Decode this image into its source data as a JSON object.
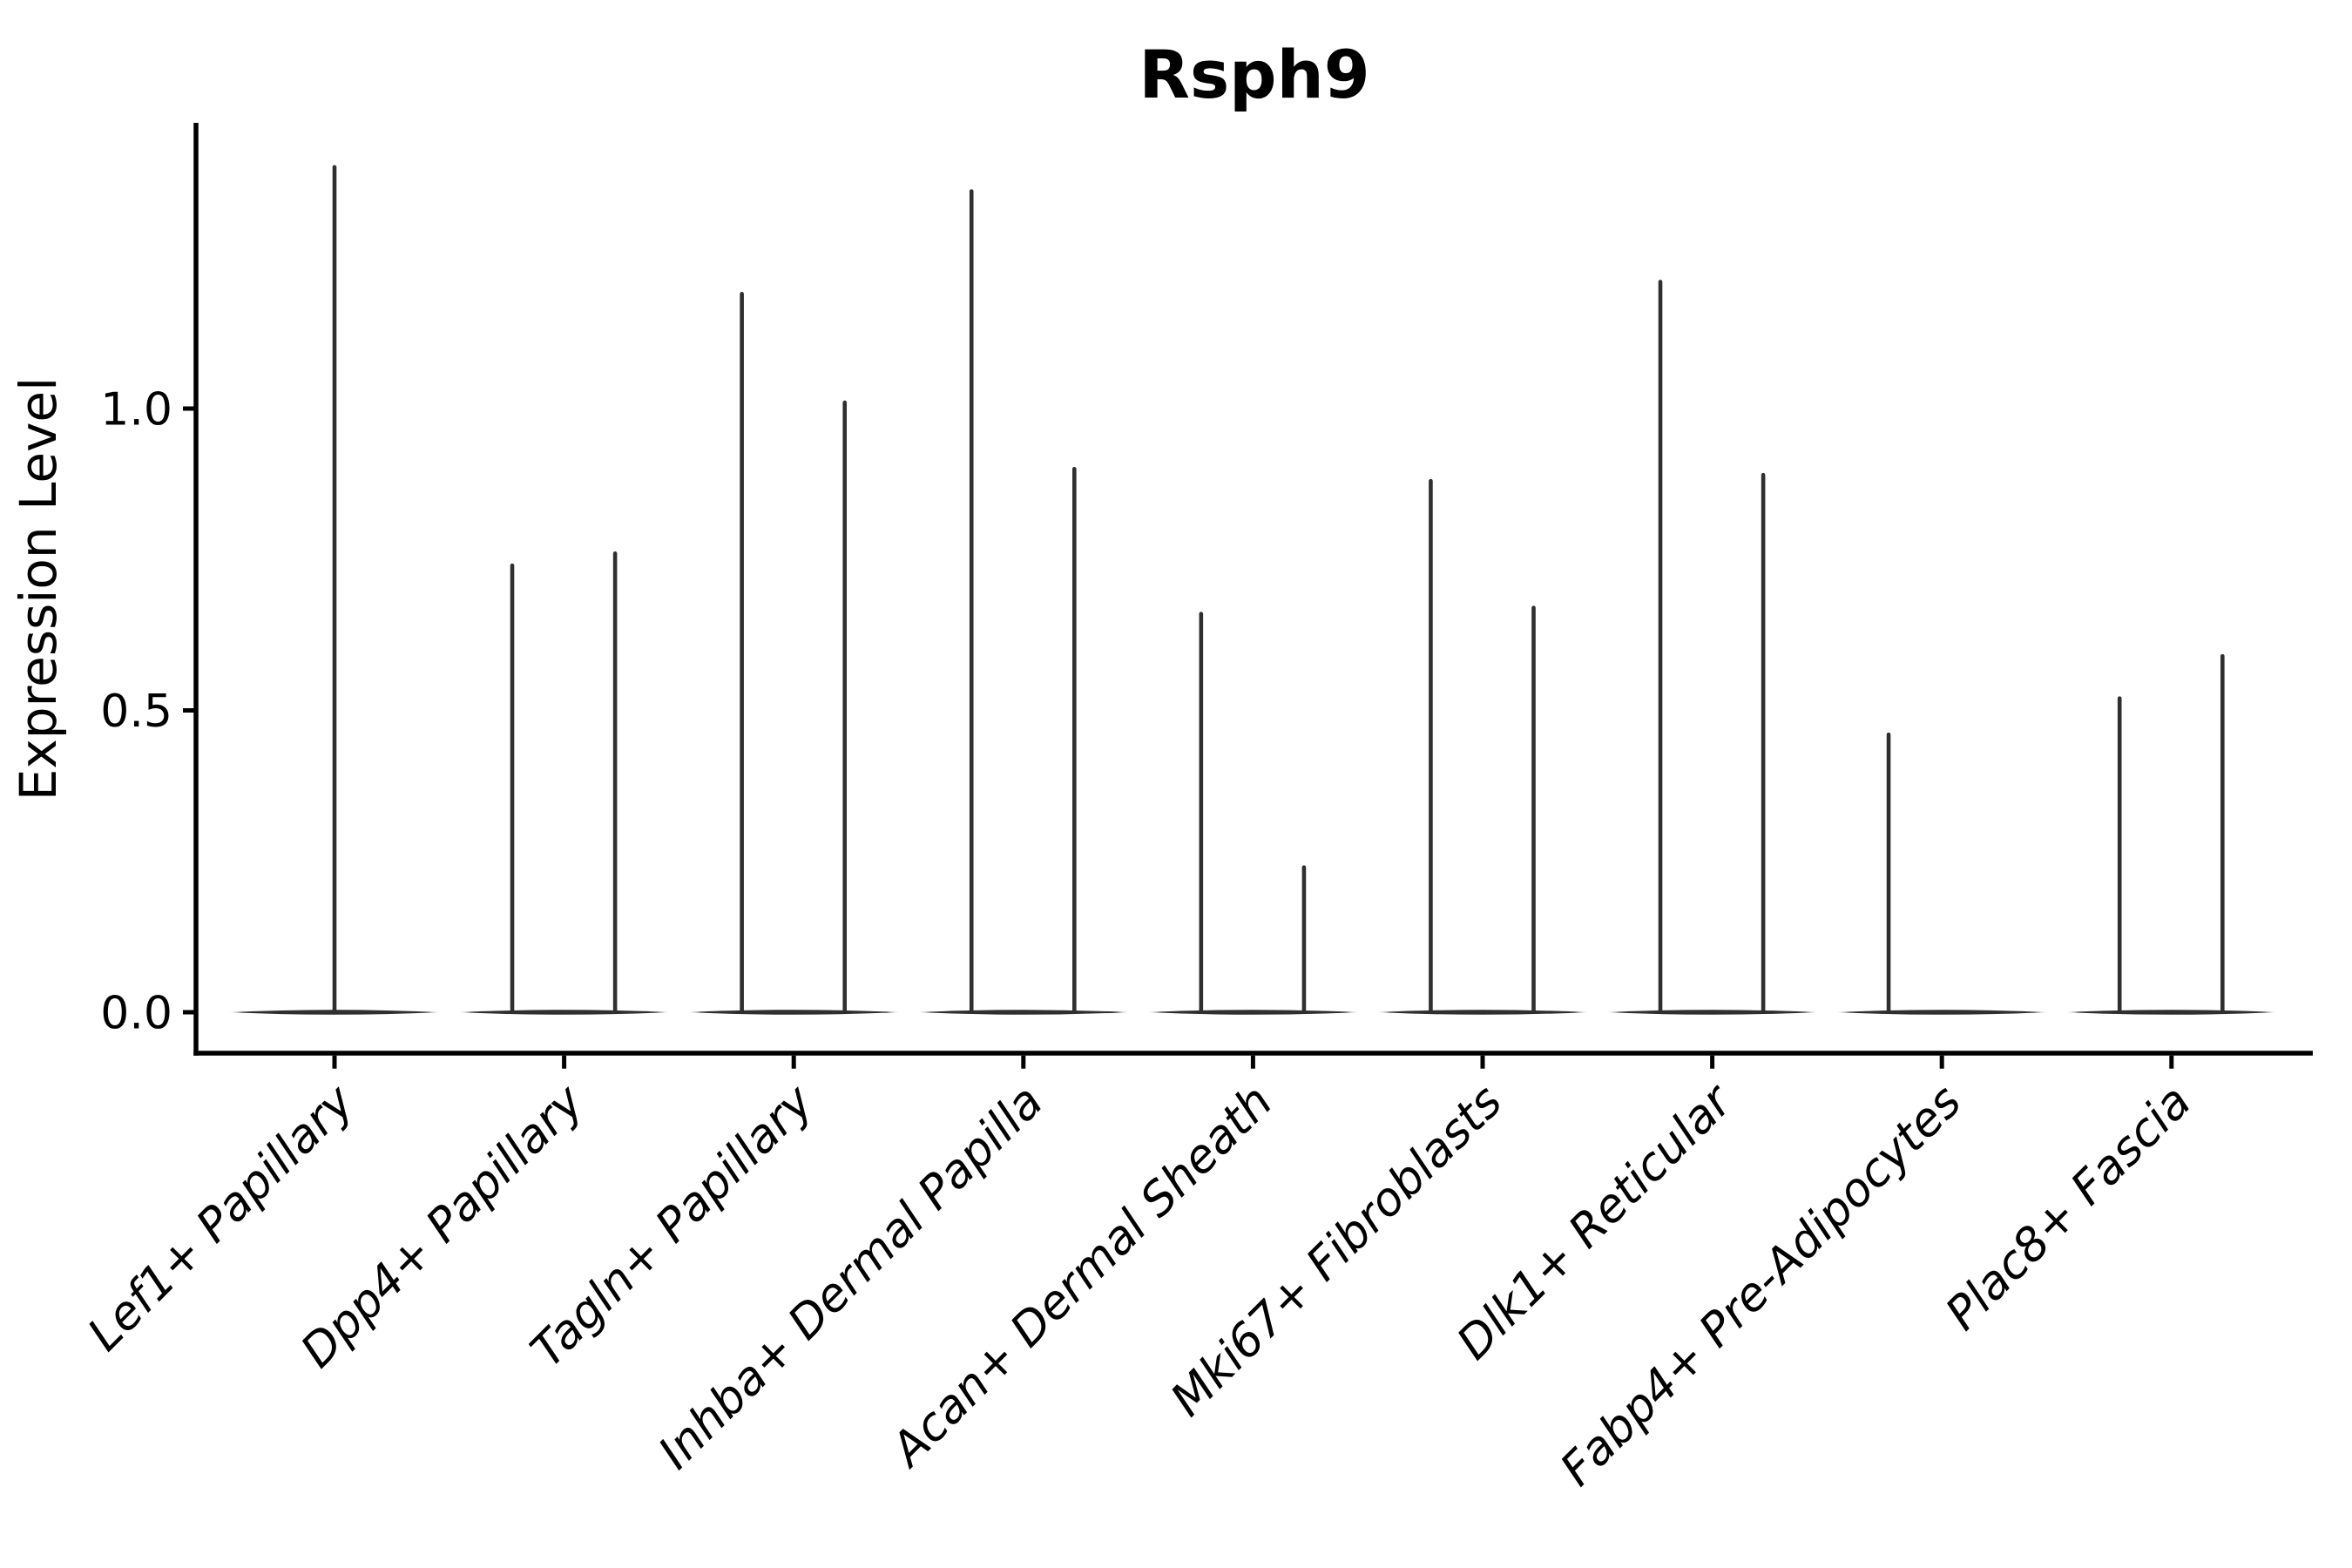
{
  "title": "Rsph9",
  "chart_data": {
    "type": "violin",
    "title": "Rsph9",
    "xlabel": "",
    "ylabel": "Expression Level",
    "y_ticks": [
      0.0,
      0.5,
      1.0
    ],
    "y_tick_labels": [
      "0.0",
      "0.5",
      "1.0"
    ],
    "ylim": [
      -0.07,
      1.47
    ],
    "grid": false,
    "legend": "none",
    "categories": [
      "Lef1+ Papillary",
      "Dpp4+ Papillary",
      "Tagln+ Papillary",
      "Inhba+ Dermal Papilla",
      "Acan+ Dermal Sheath",
      "Mki67+ Fibroblasts",
      "Dlk1+ Reticular",
      "Fabp4+ Pre-Adipocytes",
      "Plac8+ Fascia"
    ],
    "violins": [
      {
        "category": "Lef1+ Papillary",
        "base_at": 0.0,
        "spikes": [
          {
            "offset": 0.0,
            "max": 1.4
          }
        ]
      },
      {
        "category": "Dpp4+ Papillary",
        "base_at": 0.0,
        "spikes": [
          {
            "offset": -0.226,
            "max": 0.74
          },
          {
            "offset": 0.222,
            "max": 0.76
          }
        ]
      },
      {
        "category": "Tagln+ Papillary",
        "base_at": 0.0,
        "spikes": [
          {
            "offset": -0.226,
            "max": 1.19
          },
          {
            "offset": 0.222,
            "max": 1.01
          }
        ]
      },
      {
        "category": "Inhba+ Dermal Papilla",
        "base_at": 0.0,
        "spikes": [
          {
            "offset": -0.226,
            "max": 1.36
          },
          {
            "offset": 0.222,
            "max": 0.9
          }
        ]
      },
      {
        "category": "Acan+ Dermal Sheath",
        "base_at": 0.0,
        "spikes": [
          {
            "offset": -0.226,
            "max": 0.66
          },
          {
            "offset": 0.222,
            "max": 0.24
          }
        ]
      },
      {
        "category": "Mki67+ Fibroblasts",
        "base_at": 0.0,
        "spikes": [
          {
            "offset": -0.226,
            "max": 0.88
          },
          {
            "offset": 0.222,
            "max": 0.67
          }
        ]
      },
      {
        "category": "Dlk1+ Reticular",
        "base_at": 0.0,
        "spikes": [
          {
            "offset": -0.226,
            "max": 1.21
          },
          {
            "offset": 0.222,
            "max": 0.89
          }
        ]
      },
      {
        "category": "Fabp4+ Pre-Adipocytes",
        "base_at": 0.0,
        "spikes": [
          {
            "offset": -0.232,
            "max": 0.46
          }
        ]
      },
      {
        "category": "Plac8+ Fascia",
        "base_at": 0.0,
        "spikes": [
          {
            "offset": -0.226,
            "max": 0.52
          },
          {
            "offset": 0.222,
            "max": 0.59
          }
        ]
      }
    ],
    "colors": {
      "violin": "#2f2f2f",
      "axis": "#000000",
      "background": "#ffffff"
    }
  }
}
